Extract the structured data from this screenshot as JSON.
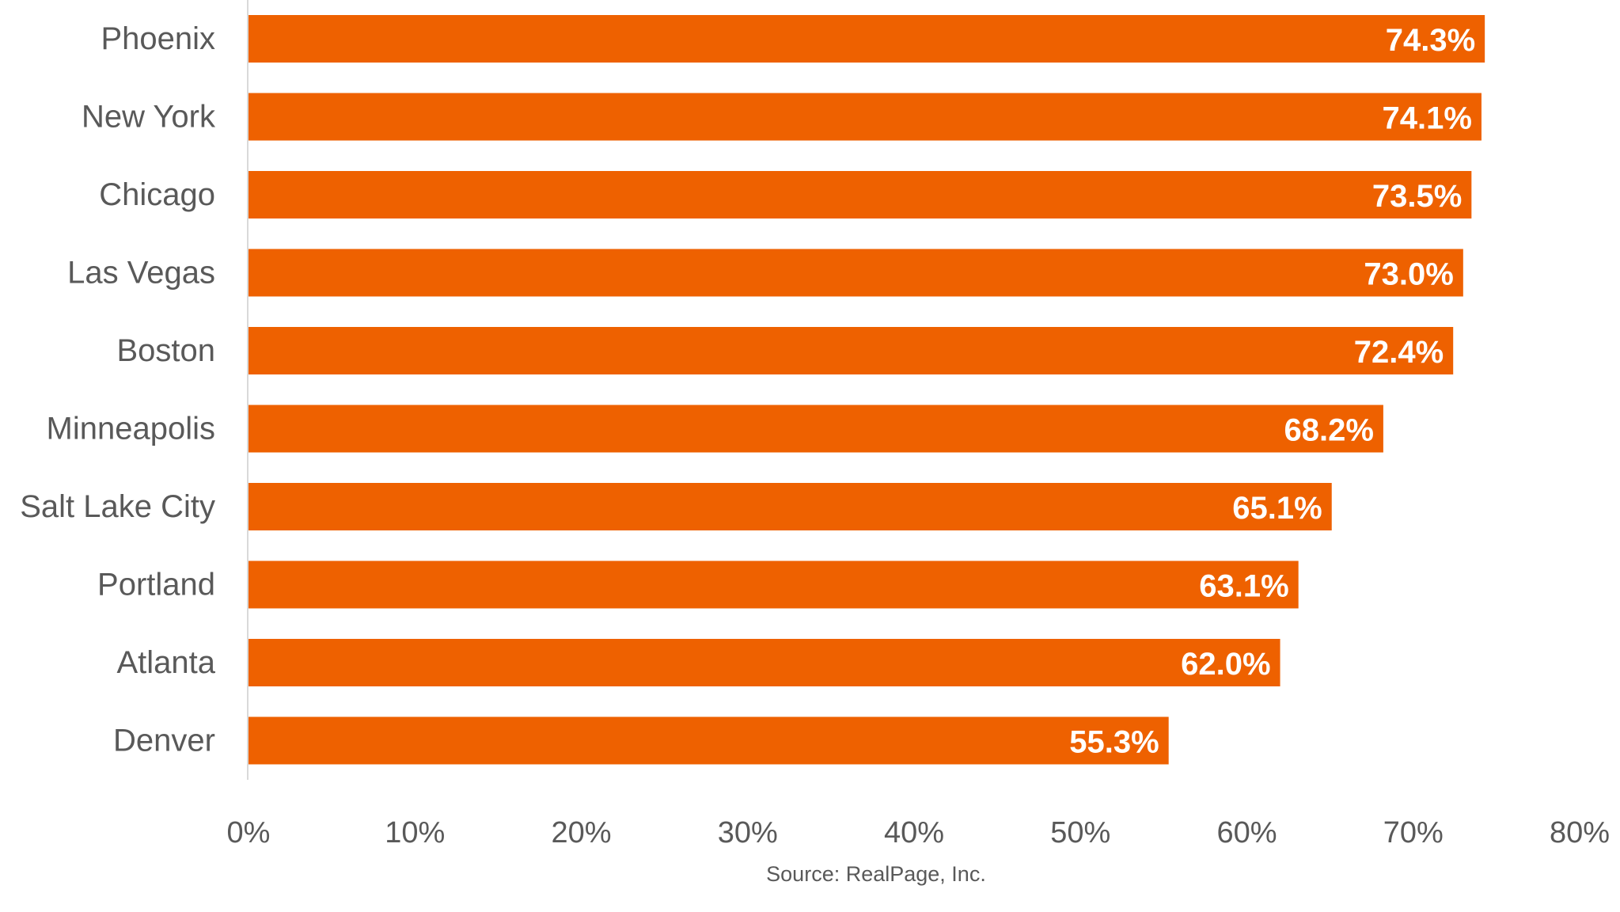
{
  "chart_data": {
    "type": "bar",
    "orientation": "horizontal",
    "categories": [
      "Phoenix",
      "New York",
      "Chicago",
      "Las Vegas",
      "Boston",
      "Minneapolis",
      "Salt Lake City",
      "Portland",
      "Atlanta",
      "Denver"
    ],
    "values": [
      74.3,
      74.1,
      73.5,
      73.0,
      72.4,
      68.2,
      65.1,
      63.1,
      62.0,
      55.3
    ],
    "data_labels": [
      "74.3%",
      "74.1%",
      "73.5%",
      "73.0%",
      "72.4%",
      "68.2%",
      "65.1%",
      "63.1%",
      "62.0%",
      "55.3%"
    ],
    "x_ticks": [
      "0%",
      "10%",
      "20%",
      "30%",
      "40%",
      "50%",
      "60%",
      "70%",
      "80%"
    ],
    "xlim": [
      0,
      80
    ],
    "grid": false,
    "legend": "none",
    "bar_color": "#EE6100",
    "axis_color": "#D9D9D9",
    "title": "",
    "xlabel": "",
    "ylabel": ""
  },
  "source": "Source: RealPage, Inc."
}
